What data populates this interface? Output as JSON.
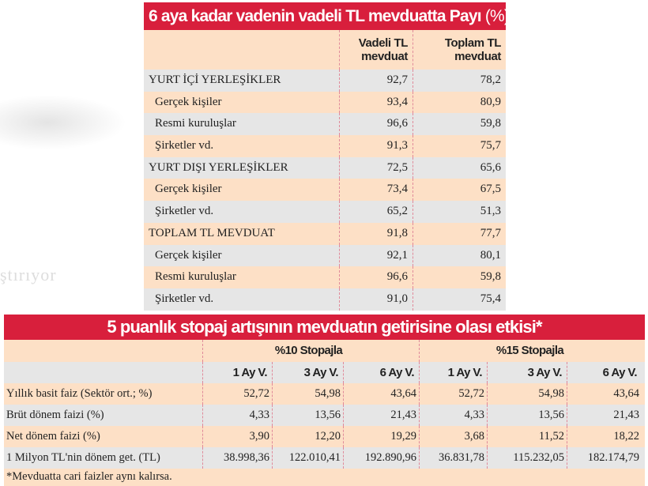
{
  "background_text": "ştırıyor",
  "colors": {
    "title_bg": "#d81f3c",
    "row_peach": "#fde0c6",
    "row_gray": "#e6e6e6"
  },
  "table1": {
    "title": "6 aya kadar vadenin vadeli TL mevduatta Payı",
    "title_unit": "(%)",
    "headers": [
      "Vadeli TL mevduat",
      "Toplam TL mevduat"
    ],
    "rows": [
      {
        "label": "YURT İÇİ YERLEŞİKLER",
        "indent": false,
        "vadeli": "92,7",
        "toplam": "78,2"
      },
      {
        "label": "Gerçek kişiler",
        "indent": true,
        "vadeli": "93,4",
        "toplam": "80,9"
      },
      {
        "label": "Resmi kuruluşlar",
        "indent": true,
        "vadeli": "96,6",
        "toplam": "59,8"
      },
      {
        "label": "Şirketler vd.",
        "indent": true,
        "vadeli": "91,3",
        "toplam": "75,7"
      },
      {
        "label": "YURT DIŞI YERLEŞİKLER",
        "indent": false,
        "vadeli": "72,5",
        "toplam": "65,6"
      },
      {
        "label": "Gerçek kişiler",
        "indent": true,
        "vadeli": "73,4",
        "toplam": "67,5"
      },
      {
        "label": "Şirketler vd.",
        "indent": true,
        "vadeli": "65,2",
        "toplam": "51,3"
      },
      {
        "label": "TOPLAM TL MEVDUAT",
        "indent": false,
        "vadeli": "91,8",
        "toplam": "77,7"
      },
      {
        "label": "Gerçek kişiler",
        "indent": true,
        "vadeli": "92,1",
        "toplam": "80,1"
      },
      {
        "label": "Resmi kuruluşlar",
        "indent": true,
        "vadeli": "96,6",
        "toplam": "59,8"
      },
      {
        "label": "Şirketler vd.",
        "indent": true,
        "vadeli": "91,0",
        "toplam": "75,4"
      }
    ]
  },
  "table2": {
    "title": "5 puanlık stopaj artışının mevduatın getirisine olası etkisi*",
    "groups": [
      "%10 Stopajla",
      "%15 Stopajla"
    ],
    "subheaders": [
      "1 Ay V.",
      "3 Ay V.",
      "6 Ay V.",
      "1 Ay V.",
      "3 Ay V.",
      "6 Ay V."
    ],
    "rows": [
      {
        "label": "Yıllık basit faiz (Sektör ort.; %)",
        "values": [
          "52,72",
          "54,98",
          "43,64",
          "52,72",
          "54,98",
          "43,64"
        ]
      },
      {
        "label": "Brüt dönem faizi (%)",
        "values": [
          "4,33",
          "13,56",
          "21,43",
          "4,33",
          "13,56",
          "21,43"
        ]
      },
      {
        "label": "Net dönem faizi (%)",
        "values": [
          "3,90",
          "12,20",
          "19,29",
          "3,68",
          "11,52",
          "18,22"
        ]
      },
      {
        "label": "1 Milyon TL'nin dönem get. (TL)",
        "values": [
          "38.998,36",
          "122.010,41",
          "192.890,96",
          "36.831,78",
          "115.232,05",
          "182.174,79"
        ]
      }
    ],
    "footnote": "*Mevduatta cari faizler aynı kalırsa."
  }
}
